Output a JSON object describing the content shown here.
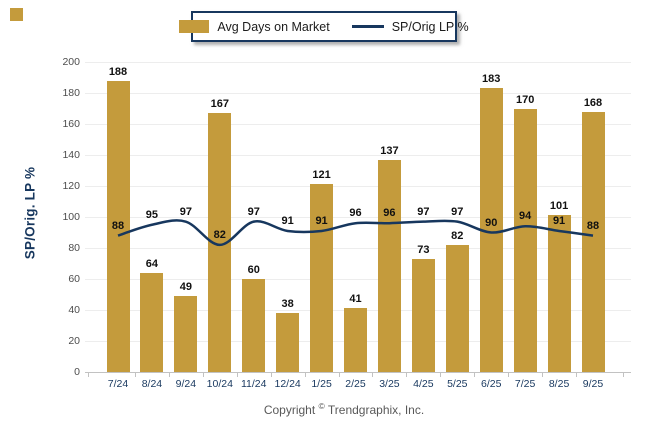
{
  "corner_marker": {
    "color": "#C49B3C"
  },
  "legend": {
    "position": "top-center",
    "items": [
      {
        "label": "Avg Days on Market",
        "swatch": "bar",
        "color": "#C49B3C"
      },
      {
        "label": "SP/Orig LP %",
        "swatch": "line",
        "color": "#17375E"
      }
    ]
  },
  "footer": {
    "copyright_prefix": "Copyright",
    "copyright_symbol": "©",
    "copyright_text": "Trendgraphix, Inc."
  },
  "colors": {
    "bar": "#C49B3C",
    "line": "#17375E",
    "axis_text": "#17375E",
    "ytick_text": "#4D4D4D",
    "gridline": "#EDEDED",
    "value_label": "#111111",
    "footer_text": "#595959"
  },
  "chart_data": {
    "type": "combo-bar-line",
    "categories": [
      "7/24",
      "8/24",
      "9/24",
      "10/24",
      "11/24",
      "12/24",
      "1/25",
      "2/25",
      "3/25",
      "4/25",
      "5/25",
      "6/25",
      "7/25",
      "8/25",
      "9/25"
    ],
    "series": [
      {
        "name": "Avg Days on Market",
        "type": "bar",
        "color": "#C49B3C",
        "values": [
          188,
          64,
          49,
          167,
          60,
          38,
          121,
          41,
          137,
          73,
          82,
          183,
          170,
          101,
          168
        ]
      },
      {
        "name": "SP/Orig LP %",
        "type": "line",
        "color": "#17375E",
        "values": [
          88,
          95,
          97,
          82,
          97,
          91,
          91,
          96,
          96,
          97,
          97,
          90,
          94,
          91,
          88
        ]
      }
    ],
    "title": "",
    "xlabel": "",
    "ylabel": "SP/Orig. LP %",
    "ylim": [
      0,
      200
    ],
    "ytick_step": 20,
    "grid": "horizontal",
    "legend_position": "top-center",
    "bar_value_labels": true,
    "line_value_labels": true
  }
}
